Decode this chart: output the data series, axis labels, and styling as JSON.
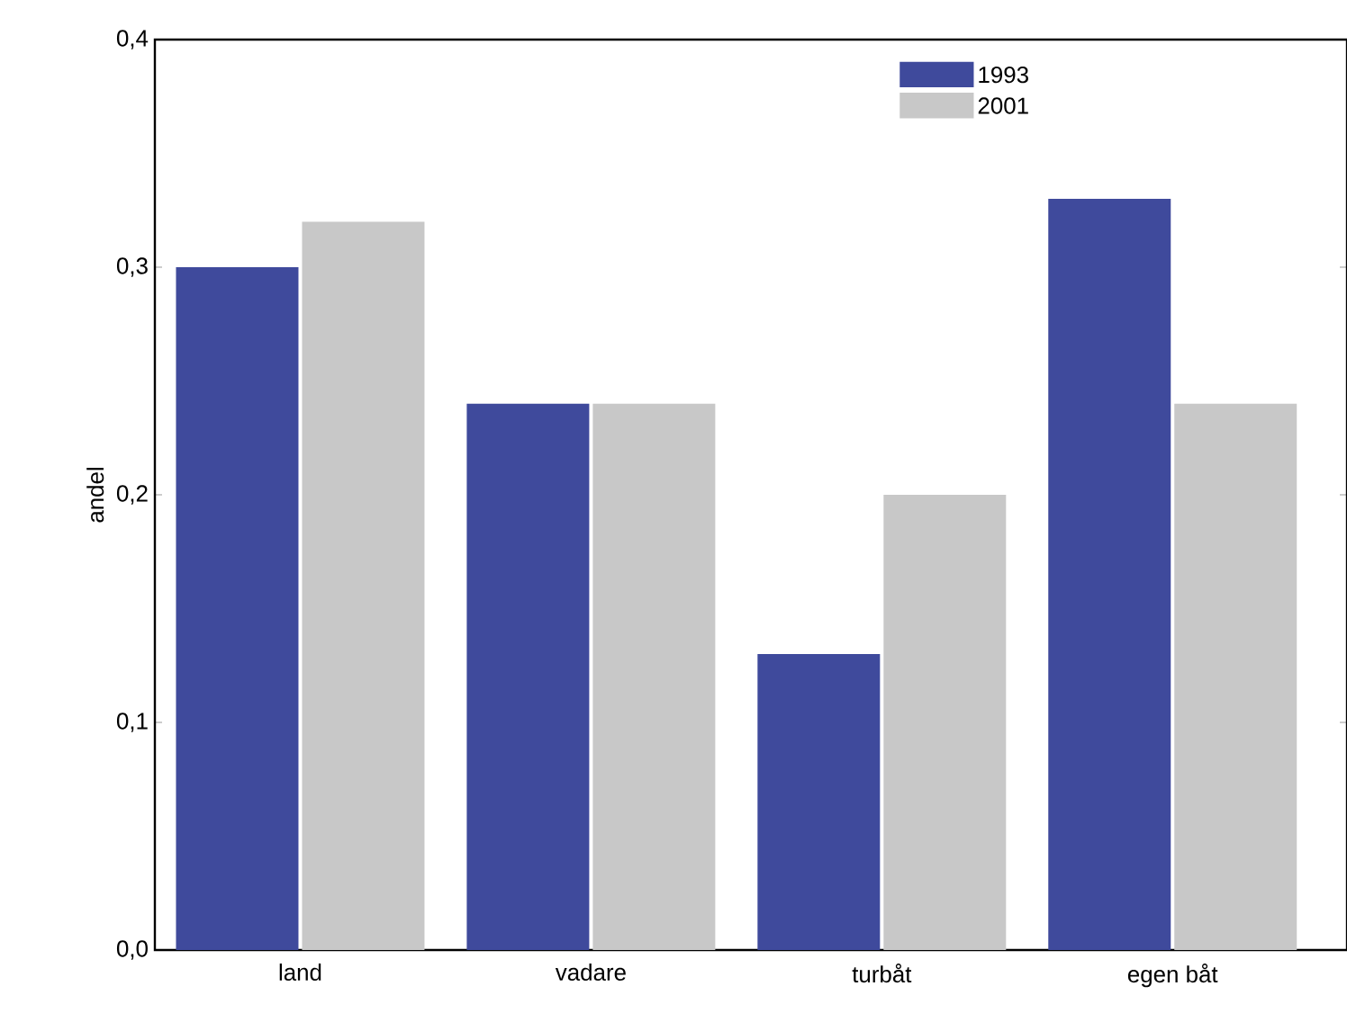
{
  "chart_data": {
    "type": "bar",
    "ylabel": "andel",
    "categories": [
      "land",
      "vadare",
      "turbåt",
      "egen båt"
    ],
    "series": [
      {
        "name": "1993",
        "color": "#3f4a9c",
        "values": [
          0.3,
          0.24,
          0.13,
          0.33
        ]
      },
      {
        "name": "2001",
        "color": "#c8c8c8",
        "values": [
          0.32,
          0.24,
          0.2,
          0.24
        ]
      }
    ],
    "ylim": [
      0,
      0.4
    ],
    "yticks": [
      {
        "value": 0,
        "label": "0,0"
      },
      {
        "value": 0.1,
        "label": "0,1"
      },
      {
        "value": 0.2,
        "label": "0,2"
      },
      {
        "value": 0.3,
        "label": "0,3"
      },
      {
        "value": 0.4,
        "label": "0,4"
      }
    ],
    "grid": false,
    "legend": "top right"
  }
}
